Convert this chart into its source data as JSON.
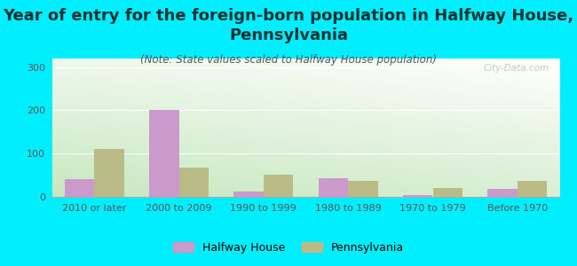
{
  "title": "Year of entry for the foreign-born population in Halfway House,\nPennsylvania",
  "subtitle": "(Note: State values scaled to Halfway House population)",
  "categories": [
    "2010 or later",
    "2000 to 2009",
    "1990 to 1999",
    "1980 to 1989",
    "1970 to 1979",
    "Before 1970"
  ],
  "halfway_house": [
    42,
    202,
    12,
    44,
    4,
    18
  ],
  "pennsylvania": [
    110,
    68,
    52,
    36,
    20,
    36
  ],
  "bar_color_hh": "#cc99cc",
  "bar_color_pa": "#bbbb88",
  "background_outer": "#00eeff",
  "ylim": [
    0,
    320
  ],
  "yticks": [
    0,
    100,
    200,
    300
  ],
  "bar_width": 0.35,
  "legend_hh": "Halfway House",
  "legend_pa": "Pennsylvania",
  "title_fontsize": 13,
  "subtitle_fontsize": 8.5,
  "tick_fontsize": 8,
  "legend_fontsize": 9,
  "watermark": "City-Data.com"
}
